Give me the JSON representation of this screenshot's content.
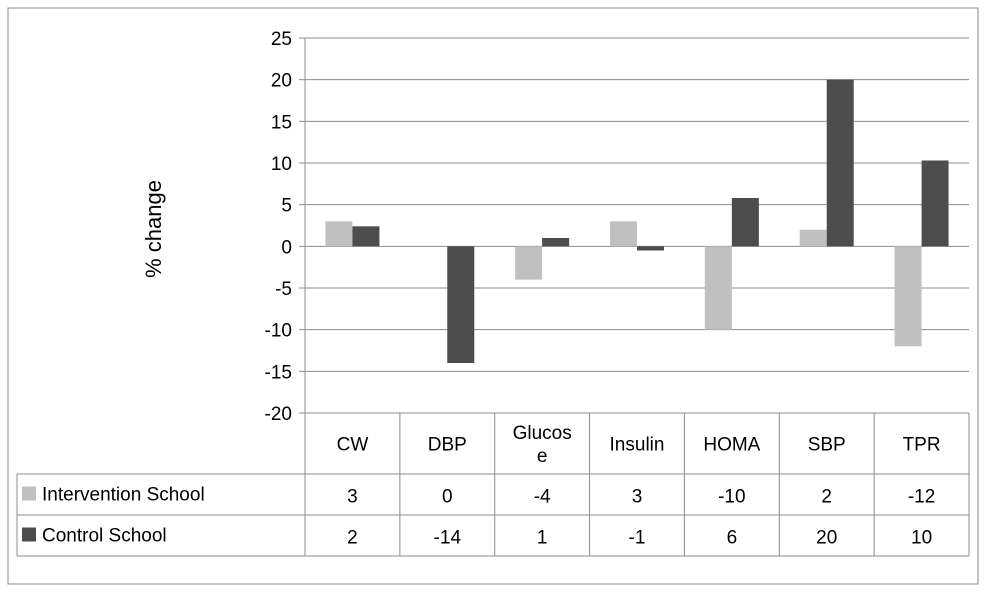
{
  "chart_data": {
    "type": "bar",
    "ylabel": "% change",
    "ylim": [
      -20,
      25
    ],
    "ytick_step": 5,
    "grid": true,
    "legend": "table-left",
    "categories": [
      "CW",
      "DBP",
      "Glucose",
      "Insulin",
      "HOMA",
      "SBP",
      "TPR"
    ],
    "category_lines": [
      [
        "CW"
      ],
      [
        "DBP"
      ],
      [
        "Glucos",
        "e"
      ],
      [
        "Insulin"
      ],
      [
        "HOMA"
      ],
      [
        "SBP"
      ],
      [
        "TPR"
      ]
    ],
    "series": [
      {
        "name": "Intervention School",
        "color": "#c0c0c0",
        "values": [
          3,
          0,
          -4,
          3,
          -10,
          2,
          -12
        ],
        "table_labels": [
          "3",
          "0",
          "-4",
          "3",
          "-10",
          "2",
          "-12"
        ]
      },
      {
        "name": "Control School",
        "color": "#4d4d4d",
        "values": [
          2.4,
          -14,
          1,
          -0.5,
          5.8,
          20,
          10.3
        ],
        "table_labels": [
          "2",
          "-14",
          "1",
          "-1",
          "6",
          "20",
          "10"
        ]
      }
    ]
  }
}
